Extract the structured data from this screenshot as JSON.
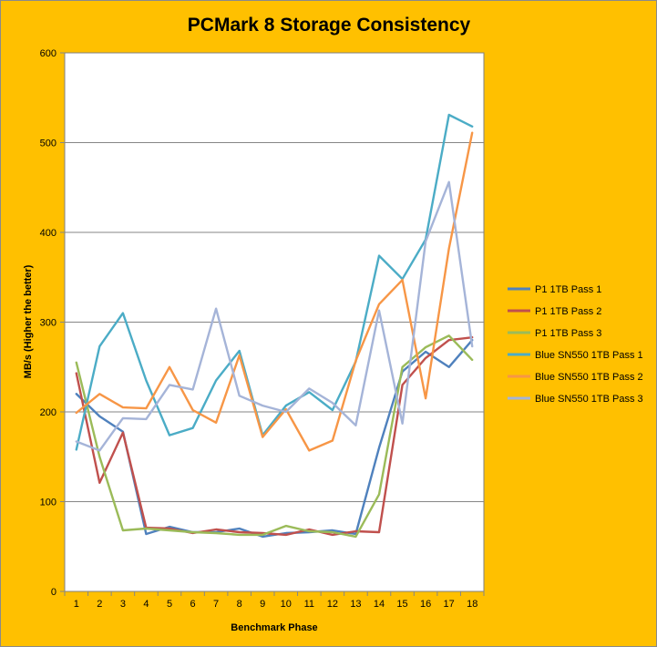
{
  "chart_data": {
    "type": "line",
    "title": "PCMark 8 Storage Consistency",
    "xlabel": "Benchmark Phase",
    "ylabel": "MB/s (Higher the better)",
    "ylim": [
      0,
      600
    ],
    "yticks": [
      0,
      100,
      200,
      300,
      400,
      500,
      600
    ],
    "grid": true,
    "legend_position": "right",
    "categories": [
      "1",
      "2",
      "3",
      "4",
      "5",
      "6",
      "7",
      "8",
      "9",
      "10",
      "11",
      "12",
      "13",
      "14",
      "15",
      "16",
      "17",
      "18"
    ],
    "series": [
      {
        "name": "P1 1TB Pass 1",
        "color": "#4f81bd",
        "values": [
          220,
          195,
          178,
          64,
          72,
          66,
          66,
          70,
          61,
          65,
          66,
          68,
          64,
          160,
          245,
          267,
          250,
          280
        ]
      },
      {
        "name": "P1 1TB Pass 2",
        "color": "#c0504d",
        "values": [
          243,
          121,
          177,
          71,
          70,
          65,
          69,
          66,
          65,
          63,
          69,
          63,
          67,
          66,
          230,
          260,
          280,
          283
        ]
      },
      {
        "name": "P1 1TB Pass 3",
        "color": "#9bbb59",
        "values": [
          255,
          150,
          68,
          70,
          68,
          66,
          65,
          63,
          63,
          73,
          67,
          66,
          61,
          108,
          250,
          272,
          285,
          258
        ]
      },
      {
        "name": "Blue SN550 1TB Pass 1",
        "color": "#4bacc6",
        "values": [
          158,
          273,
          310,
          235,
          174,
          182,
          235,
          268,
          174,
          207,
          222,
          202,
          256,
          374,
          348,
          392,
          531,
          518
        ]
      },
      {
        "name": "Blue SN550 1TB Pass 2",
        "color": "#f79646",
        "values": [
          199,
          220,
          205,
          204,
          250,
          202,
          188,
          263,
          172,
          203,
          157,
          168,
          257,
          320,
          347,
          215,
          382,
          511
        ]
      },
      {
        "name": "Blue SN550 1TB Pass 3",
        "color": "#a5b4d8",
        "values": [
          167,
          157,
          193,
          192,
          230,
          225,
          315,
          218,
          207,
          200,
          226,
          210,
          185,
          313,
          187,
          390,
          456,
          273
        ]
      }
    ]
  }
}
